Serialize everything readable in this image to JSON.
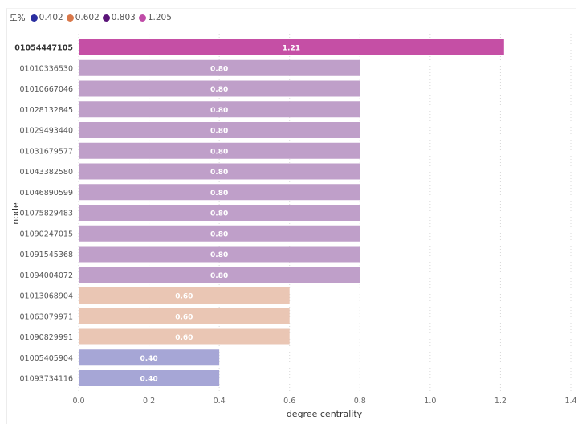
{
  "legend": {
    "title": "도%",
    "items": [
      {
        "label": "0.402",
        "color": "#2a2ea0"
      },
      {
        "label": "0.602",
        "color": "#d9784a"
      },
      {
        "label": "0.803",
        "color": "#5a1478"
      },
      {
        "label": "1.205",
        "color": "#c04ca8"
      }
    ]
  },
  "chart_data": {
    "type": "bar",
    "orientation": "horizontal",
    "title": "",
    "xlabel": "degree centrality",
    "ylabel": "node",
    "xlim": [
      0,
      1.4
    ],
    "xticks": [
      "0.0",
      "0.2",
      "0.4",
      "0.6",
      "0.8",
      "1.0",
      "1.2",
      "1.4"
    ],
    "grid": "vertical-dotted",
    "legend_placement": "top-left",
    "categories": [
      "01054447105",
      "01010336530",
      "01010667046",
      "01028132845",
      "01029493440",
      "01031679577",
      "01043382580",
      "01046890599",
      "01075829483",
      "01090247015",
      "01091545368",
      "01094004072",
      "01013068904",
      "01063079971",
      "01090829991",
      "01005405904",
      "01093734116"
    ],
    "values": [
      1.21,
      0.8,
      0.8,
      0.8,
      0.8,
      0.8,
      0.8,
      0.8,
      0.8,
      0.8,
      0.8,
      0.8,
      0.6,
      0.6,
      0.6,
      0.4,
      0.4
    ],
    "data_labels": [
      "1.21",
      "0.80",
      "0.80",
      "0.80",
      "0.80",
      "0.80",
      "0.80",
      "0.80",
      "0.80",
      "0.80",
      "0.80",
      "0.80",
      "0.60",
      "0.60",
      "0.60",
      "0.40",
      "0.40"
    ],
    "highlighted": "01054447105",
    "bar_colors": {
      "1.205": "#c54fa5",
      "0.803": "#bf9fc9",
      "0.602": "#eac6b4",
      "0.402": "#a6a6d6"
    }
  }
}
